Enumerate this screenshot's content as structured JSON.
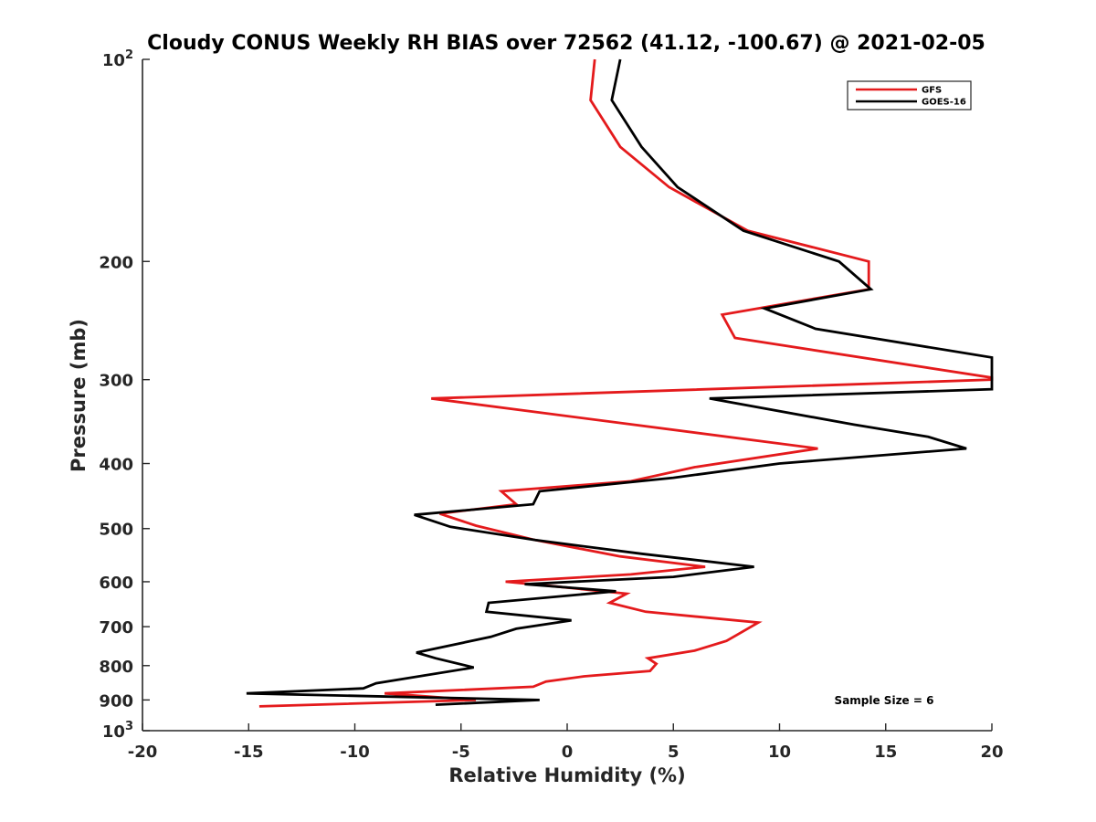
{
  "chart_data": {
    "type": "line",
    "title": "Cloudy CONUS Weekly RH BIAS over 72562 (41.12, -100.67) @ 2021-02-05",
    "xlabel": "Relative Humidity (%)",
    "ylabel": "Pressure (mb)",
    "xlim": [
      -20,
      20
    ],
    "ylim": [
      100,
      1000
    ],
    "yscale": "log",
    "y_reversed": true,
    "xticks": [
      -20,
      -15,
      -10,
      -5,
      0,
      5,
      10,
      15,
      20
    ],
    "xtick_labels": [
      "-20",
      "-15",
      "-10",
      "-5",
      "0",
      "5",
      "10",
      "15",
      "20"
    ],
    "yticks": [
      100,
      200,
      300,
      400,
      500,
      600,
      700,
      800,
      900,
      1000
    ],
    "ytick_labels": [
      {
        "base": "10",
        "exp": "2"
      },
      {
        "base": "200"
      },
      {
        "base": "300"
      },
      {
        "base": "400"
      },
      {
        "base": "500"
      },
      {
        "base": "600"
      },
      {
        "base": "700"
      },
      {
        "base": "800"
      },
      {
        "base": "900"
      },
      {
        "base": "10",
        "exp": "3"
      }
    ],
    "grid": false,
    "legend_position": "top-right",
    "annotation": "Sample Size = 6",
    "series": [
      {
        "name": "GFS",
        "color": "#e41a1c",
        "points": [
          [
            1.3,
            100
          ],
          [
            1.1,
            115
          ],
          [
            2.5,
            135
          ],
          [
            4.8,
            155
          ],
          [
            8.5,
            180
          ],
          [
            14.2,
            200
          ],
          [
            14.2,
            220
          ],
          [
            7.3,
            240
          ],
          [
            7.9,
            260
          ],
          [
            20.0,
            298
          ],
          [
            20.0,
            300
          ],
          [
            -6.4,
            320
          ],
          [
            11.8,
            380
          ],
          [
            6.0,
            405
          ],
          [
            3.0,
            425
          ],
          [
            -3.1,
            440
          ],
          [
            -2.4,
            460
          ],
          [
            -6.0,
            475
          ],
          [
            -4.3,
            495
          ],
          [
            -1.5,
            520
          ],
          [
            2.5,
            550
          ],
          [
            6.5,
            570
          ],
          [
            3.0,
            585
          ],
          [
            -2.9,
            600
          ],
          [
            -0.5,
            610
          ],
          [
            2.8,
            625
          ],
          [
            2.0,
            645
          ],
          [
            3.7,
            665
          ],
          [
            9.0,
            690
          ],
          [
            8.0,
            720
          ],
          [
            7.5,
            735
          ],
          [
            6.0,
            760
          ],
          [
            3.8,
            780
          ],
          [
            4.2,
            795
          ],
          [
            3.9,
            815
          ],
          [
            0.8,
            830
          ],
          [
            -1.0,
            845
          ],
          [
            -1.6,
            860
          ],
          [
            -8.6,
            880
          ],
          [
            -4.3,
            900
          ],
          [
            -14.5,
            920
          ]
        ]
      },
      {
        "name": "GOES-16",
        "color": "#000000",
        "points": [
          [
            2.5,
            100
          ],
          [
            2.1,
            115
          ],
          [
            3.5,
            135
          ],
          [
            5.2,
            155
          ],
          [
            8.3,
            180
          ],
          [
            12.8,
            200
          ],
          [
            14.3,
            220
          ],
          [
            9.3,
            235
          ],
          [
            11.7,
            252
          ],
          [
            20.0,
            278
          ],
          [
            20.0,
            310
          ],
          [
            6.7,
            320
          ],
          [
            13.5,
            350
          ],
          [
            17.0,
            365
          ],
          [
            18.8,
            380
          ],
          [
            10.0,
            400
          ],
          [
            5.0,
            420
          ],
          [
            -1.3,
            440
          ],
          [
            -1.6,
            460
          ],
          [
            -7.2,
            477
          ],
          [
            -5.5,
            497
          ],
          [
            -1.5,
            520
          ],
          [
            3.5,
            545
          ],
          [
            8.8,
            570
          ],
          [
            5.0,
            590
          ],
          [
            -2.0,
            605
          ],
          [
            2.3,
            620
          ],
          [
            -3.7,
            645
          ],
          [
            -3.8,
            665
          ],
          [
            0.2,
            685
          ],
          [
            -2.4,
            705
          ],
          [
            -3.6,
            725
          ],
          [
            -7.1,
            765
          ],
          [
            -6.2,
            780
          ],
          [
            -4.4,
            805
          ],
          [
            -9.0,
            850
          ],
          [
            -9.6,
            865
          ],
          [
            -15.1,
            880
          ],
          [
            -1.3,
            900
          ],
          [
            -6.2,
            915
          ]
        ]
      }
    ]
  }
}
